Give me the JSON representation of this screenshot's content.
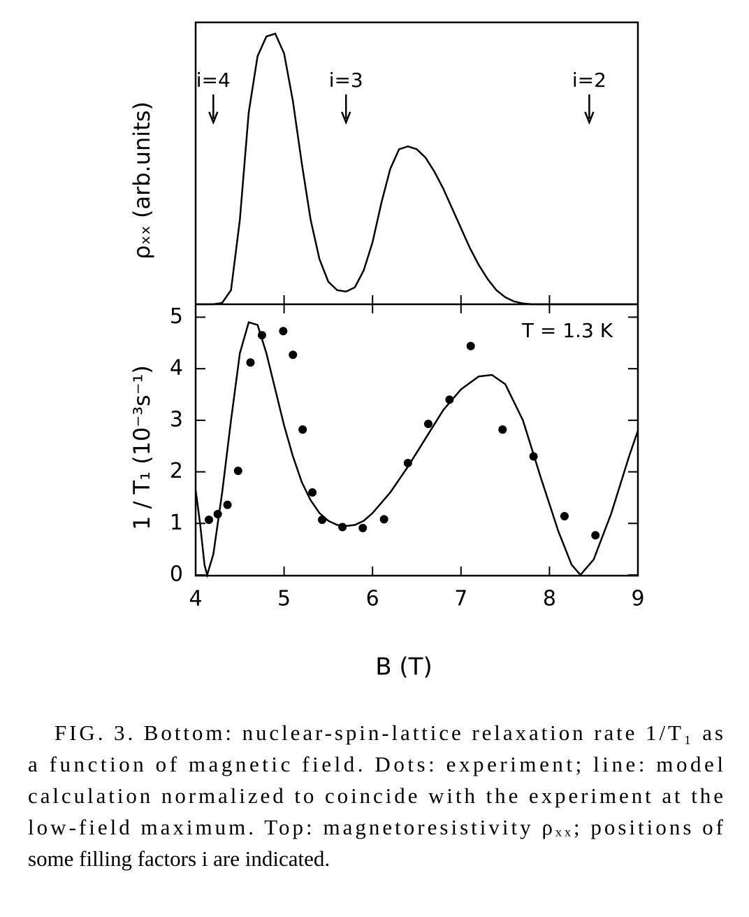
{
  "chart_data": [
    {
      "type": "line",
      "y_label": "ρₓₓ (arb.units)",
      "xlim": [
        4,
        9
      ],
      "ylim": [
        0,
        1
      ],
      "x": [
        4.0,
        4.2,
        4.3,
        4.4,
        4.5,
        4.6,
        4.7,
        4.8,
        4.9,
        5.0,
        5.1,
        5.2,
        5.3,
        5.4,
        5.5,
        5.6,
        5.7,
        5.8,
        5.9,
        6.0,
        6.1,
        6.2,
        6.3,
        6.4,
        6.5,
        6.6,
        6.7,
        6.8,
        6.9,
        7.0,
        7.1,
        7.2,
        7.3,
        7.4,
        7.5,
        7.6,
        7.7,
        7.8,
        8.0,
        9.0
      ],
      "values": [
        0,
        0,
        0.005,
        0.05,
        0.3,
        0.68,
        0.88,
        0.95,
        0.96,
        0.89,
        0.72,
        0.5,
        0.3,
        0.16,
        0.08,
        0.05,
        0.045,
        0.06,
        0.12,
        0.22,
        0.36,
        0.48,
        0.55,
        0.56,
        0.55,
        0.52,
        0.47,
        0.41,
        0.34,
        0.27,
        0.2,
        0.14,
        0.09,
        0.05,
        0.025,
        0.01,
        0.003,
        0,
        0,
        0
      ],
      "color": "#000000",
      "annotations": [
        {
          "text": "i=4",
          "x": 4.2
        },
        {
          "text": "i=3",
          "x": 5.7
        },
        {
          "text": "i=2",
          "x": 8.45
        }
      ]
    },
    {
      "type": "scatter",
      "x_label": "B (T)",
      "y_label": "1 / T₁ (10⁻³s⁻¹)",
      "annotation": "T = 1.3 K",
      "xlim": [
        4,
        9
      ],
      "ylim": [
        0,
        5.25
      ],
      "xticks": [
        4,
        5,
        6,
        7,
        8,
        9
      ],
      "yticks": [
        0,
        1,
        2,
        3,
        4,
        5
      ],
      "series": [
        {
          "mark": "dot",
          "color": "#000000",
          "x": [
            4.15,
            4.25,
            4.36,
            4.48,
            4.62,
            4.75,
            4.99,
            5.1,
            5.21,
            5.32,
            5.43,
            5.66,
            5.89,
            6.13,
            6.4,
            6.63,
            6.87,
            7.11,
            7.47,
            7.82,
            8.17,
            8.52
          ],
          "values": [
            1.07,
            1.18,
            1.36,
            2.02,
            4.12,
            4.65,
            4.73,
            4.27,
            2.82,
            1.6,
            1.07,
            0.93,
            0.91,
            1.08,
            2.17,
            2.93,
            3.4,
            4.44,
            2.82,
            2.3,
            1.14,
            0.77
          ]
        },
        {
          "mark": "line",
          "color": "#000000",
          "x": [
            4.0,
            4.05,
            4.1,
            4.13,
            4.2,
            4.3,
            4.4,
            4.5,
            4.6,
            4.7,
            4.8,
            4.9,
            5.0,
            5.1,
            5.2,
            5.3,
            5.4,
            5.5,
            5.6,
            5.7,
            5.8,
            5.9,
            6.0,
            6.2,
            6.4,
            6.6,
            6.8,
            7.0,
            7.2,
            7.35,
            7.5,
            7.7,
            7.9,
            8.1,
            8.25,
            8.35,
            8.5,
            8.7,
            8.9,
            9.0
          ],
          "values": [
            1.65,
            1.0,
            0.2,
            0,
            0.4,
            1.6,
            3.0,
            4.3,
            4.9,
            4.85,
            4.3,
            3.6,
            2.9,
            2.3,
            1.8,
            1.45,
            1.2,
            1.05,
            0.97,
            0.95,
            0.97,
            1.05,
            1.2,
            1.6,
            2.1,
            2.65,
            3.2,
            3.6,
            3.85,
            3.88,
            3.7,
            3.0,
            1.9,
            0.85,
            0.2,
            0,
            0.3,
            1.2,
            2.3,
            2.8
          ]
        }
      ]
    }
  ],
  "caption": {
    "lines": [
      "FIG. 3.  Bottom:  nuclear-spin-lattice relaxation rate 1/T₁ as",
      "a function of magnetic field.  Dots: experiment; line:  model",
      "calculation normalized to coincide with the experiment at the",
      "low-field maximum.  Top:  magnetoresistivity ρₓₓ; positions of",
      "some filling factors i are indicated."
    ]
  }
}
